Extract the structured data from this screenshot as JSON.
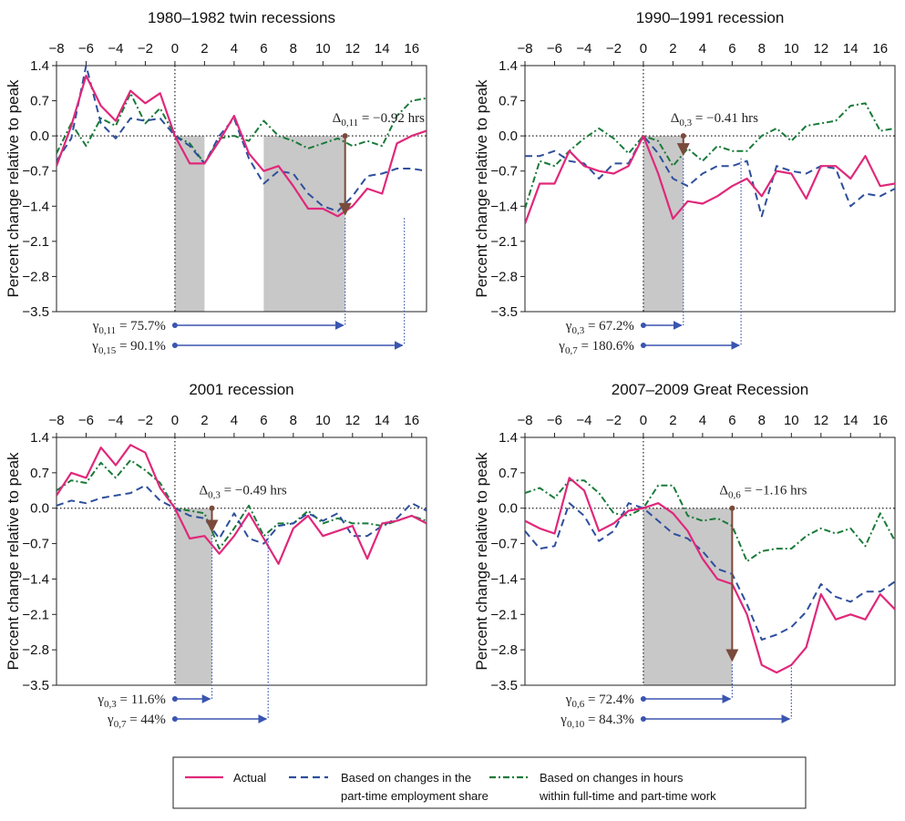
{
  "colors": {
    "actual": "#e0287a",
    "part_time_share": "#2e4f9c",
    "hours_within": "#1a7a3a",
    "shade": "#c8c8c8",
    "brown_marker": "#7a4a3a",
    "gamma_arrow": "#3a55b0"
  },
  "chart_data": [
    {
      "type": "line",
      "title": "1980–1982 twin recessions",
      "ylabel": "Percent change relative to peak",
      "x_ticks": [
        "−8",
        "−6",
        "−4",
        "−2",
        "0",
        "2",
        "4",
        "6",
        "8",
        "10",
        "12",
        "14",
        "16"
      ],
      "y_ticks": [
        "1.4",
        "0.7",
        "0.0",
        "−0.7",
        "−1.4",
        "−2.1",
        "−2.8",
        "−3.5"
      ],
      "xlim": [
        -8,
        17
      ],
      "ylim": [
        -3.5,
        1.4
      ],
      "x": [
        -8,
        -7,
        -6,
        -5,
        -4,
        -3,
        -2,
        -1,
        0,
        1,
        2,
        3,
        4,
        5,
        6,
        7,
        8,
        9,
        10,
        11,
        12,
        13,
        14,
        15,
        16,
        17
      ],
      "series": [
        {
          "key": "actual",
          "values": [
            -0.6,
            0.2,
            1.2,
            0.6,
            0.3,
            0.9,
            0.65,
            0.85,
            0.0,
            -0.55,
            -0.55,
            -0.1,
            0.4,
            -0.35,
            -0.7,
            -0.6,
            -1.0,
            -1.45,
            -1.45,
            -1.6,
            -1.4,
            -1.05,
            -1.15,
            -0.15,
            0.0,
            0.1
          ]
        },
        {
          "key": "part_time_share",
          "values": [
            -0.5,
            -0.05,
            1.4,
            0.25,
            -0.05,
            0.35,
            0.3,
            0.35,
            0.0,
            -0.2,
            -0.55,
            0.0,
            0.35,
            -0.45,
            -0.95,
            -0.7,
            -0.75,
            -1.15,
            -1.4,
            -1.5,
            -1.2,
            -0.8,
            -0.75,
            -0.65,
            -0.65,
            -0.7
          ]
        },
        {
          "key": "hours_within",
          "values": [
            -0.35,
            0.25,
            -0.2,
            0.35,
            0.2,
            0.85,
            0.25,
            0.55,
            0.0,
            -0.15,
            -0.55,
            -0.05,
            0.0,
            -0.1,
            0.3,
            0.0,
            -0.1,
            -0.25,
            -0.15,
            -0.05,
            -0.2,
            -0.1,
            -0.2,
            0.4,
            0.7,
            0.75
          ]
        }
      ],
      "shaded_ranges": [
        [
          0,
          2
        ],
        [
          6,
          11.5
        ]
      ],
      "delta": {
        "label": "Δ",
        "sub": "0,11",
        "text": " = −0.92 hrs",
        "x": 11.5,
        "y": -1.6
      },
      "gammas": [
        {
          "label": "γ",
          "sub": "0,11",
          "text": " = 75.7%",
          "x_end": 11.5
        },
        {
          "label": "γ",
          "sub": "0,15",
          "text": " = 90.1%",
          "x_end": 15.5
        }
      ]
    },
    {
      "type": "line",
      "title": "1990–1991 recession",
      "ylabel": "Percent change relative to peak",
      "x_ticks": [
        "−8",
        "−6",
        "−4",
        "−2",
        "0",
        "2",
        "4",
        "6",
        "8",
        "10",
        "12",
        "14",
        "16"
      ],
      "y_ticks": [
        "1.4",
        "0.7",
        "0.0",
        "−0.7",
        "−1.4",
        "−2.1",
        "−2.8",
        "−3.5"
      ],
      "xlim": [
        -8,
        17
      ],
      "ylim": [
        -3.5,
        1.4
      ],
      "x": [
        -8,
        -7,
        -6,
        -5,
        -4,
        -3,
        -2,
        -1,
        0,
        1,
        2,
        3,
        4,
        5,
        6,
        7,
        8,
        9,
        10,
        11,
        12,
        13,
        14,
        15,
        16,
        17
      ],
      "series": [
        {
          "key": "actual",
          "values": [
            -1.75,
            -0.95,
            -0.95,
            -0.3,
            -0.6,
            -0.7,
            -0.75,
            -0.6,
            0.0,
            -0.75,
            -1.65,
            -1.3,
            -1.35,
            -1.2,
            -1.0,
            -0.85,
            -1.2,
            -0.7,
            -0.75,
            -1.25,
            -0.6,
            -0.6,
            -0.85,
            -0.4,
            -1.0,
            -0.95
          ]
        },
        {
          "key": "part_time_share",
          "values": [
            -0.4,
            -0.4,
            -0.3,
            -0.5,
            -0.55,
            -0.85,
            -0.55,
            -0.55,
            0.0,
            -0.35,
            -0.85,
            -1.0,
            -0.75,
            -0.6,
            -0.6,
            -0.5,
            -1.6,
            -0.6,
            -0.7,
            -0.75,
            -0.6,
            -0.65,
            -1.4,
            -1.15,
            -1.2,
            -1.05
          ]
        },
        {
          "key": "hours_within",
          "values": [
            -1.45,
            -0.5,
            -0.6,
            -0.3,
            -0.05,
            0.15,
            -0.05,
            -0.35,
            0.0,
            -0.1,
            -0.6,
            -0.25,
            -0.5,
            -0.2,
            -0.3,
            -0.3,
            0.0,
            0.15,
            -0.1,
            0.2,
            0.25,
            0.3,
            0.6,
            0.65,
            0.1,
            0.15
          ]
        }
      ],
      "shaded_ranges": [
        [
          0,
          2.7
        ]
      ],
      "delta": {
        "label": "Δ",
        "sub": "0,3",
        "text": " = −0.41 hrs",
        "x": 2.7,
        "y": -0.41
      },
      "gammas": [
        {
          "label": "γ",
          "sub": "0,3",
          "text": " = 67.2%",
          "x_end": 2.7
        },
        {
          "label": "γ",
          "sub": "0,7",
          "text": " = 180.6%",
          "x_end": 6.6
        }
      ]
    },
    {
      "type": "line",
      "title": "2001 recession",
      "ylabel": "Percent change relative to peak",
      "x_ticks": [
        "−8",
        "−6",
        "−4",
        "−2",
        "0",
        "2",
        "4",
        "6",
        "8",
        "10",
        "12",
        "14",
        "16"
      ],
      "y_ticks": [
        "1.4",
        "0.7",
        "0.0",
        "−0.7",
        "−1.4",
        "−2.1",
        "−2.8",
        "−3.5"
      ],
      "xlim": [
        -8,
        17
      ],
      "ylim": [
        -3.5,
        1.4
      ],
      "x": [
        -8,
        -7,
        -6,
        -5,
        -4,
        -3,
        -2,
        -1,
        0,
        1,
        2,
        3,
        4,
        5,
        6,
        7,
        8,
        9,
        10,
        11,
        12,
        13,
        14,
        15,
        16,
        17
      ],
      "series": [
        {
          "key": "actual",
          "values": [
            0.25,
            0.7,
            0.6,
            1.2,
            0.85,
            1.25,
            1.1,
            0.4,
            0.0,
            -0.6,
            -0.55,
            -0.9,
            -0.55,
            -0.1,
            -0.6,
            -1.1,
            -0.4,
            -0.15,
            -0.55,
            -0.45,
            -0.35,
            -1.0,
            -0.3,
            -0.25,
            -0.15,
            -0.3
          ]
        },
        {
          "key": "part_time_share",
          "values": [
            0.05,
            0.15,
            0.1,
            0.2,
            0.25,
            0.3,
            0.45,
            0.15,
            0.0,
            -0.15,
            -0.2,
            -0.6,
            -0.1,
            -0.6,
            -0.7,
            -0.35,
            -0.3,
            -0.1,
            -0.25,
            -0.1,
            -0.55,
            -0.55,
            -0.35,
            -0.2,
            0.1,
            -0.05
          ]
        },
        {
          "key": "hours_within",
          "values": [
            0.35,
            0.55,
            0.5,
            0.9,
            0.6,
            0.95,
            0.75,
            0.5,
            0.0,
            -0.05,
            -0.1,
            -0.8,
            -0.4,
            0.05,
            -0.55,
            -0.3,
            -0.3,
            -0.05,
            -0.3,
            -0.2,
            -0.3,
            -0.3,
            -0.35,
            -0.25,
            -0.15,
            -0.25
          ]
        }
      ],
      "shaded_ranges": [
        [
          0,
          2.5
        ]
      ],
      "delta": {
        "label": "Δ",
        "sub": "0,3",
        "text": " = −0.49 hrs",
        "x": 2.5,
        "y": -0.49
      },
      "gammas": [
        {
          "label": "γ",
          "sub": "0,3",
          "text": " = 11.6%",
          "x_end": 2.5
        },
        {
          "label": "γ",
          "sub": "0,7",
          "text": " = 44%",
          "x_end": 6.3
        }
      ]
    },
    {
      "type": "line",
      "title": "2007–2009 Great Recession",
      "ylabel": "Percent change relative to peak",
      "x_ticks": [
        "−8",
        "−6",
        "−4",
        "−2",
        "0",
        "2",
        "4",
        "6",
        "8",
        "10",
        "12",
        "14",
        "16"
      ],
      "y_ticks": [
        "1.4",
        "0.7",
        "0.0",
        "−0.7",
        "−1.4",
        "−2.1",
        "−2.8",
        "−3.5"
      ],
      "xlim": [
        -8,
        17
      ],
      "ylim": [
        -3.5,
        1.4
      ],
      "x": [
        -8,
        -7,
        -6,
        -5,
        -4,
        -3,
        -2,
        -1,
        0,
        1,
        2,
        3,
        4,
        5,
        6,
        7,
        8,
        9,
        10,
        11,
        12,
        13,
        14,
        15,
        16,
        17
      ],
      "series": [
        {
          "key": "actual",
          "values": [
            -0.25,
            -0.4,
            -0.5,
            0.6,
            0.35,
            -0.45,
            -0.3,
            -0.05,
            0.0,
            0.1,
            -0.1,
            -0.45,
            -1.0,
            -1.4,
            -1.5,
            -2.1,
            -3.1,
            -3.25,
            -3.1,
            -2.75,
            -1.7,
            -2.2,
            -2.1,
            -2.2,
            -1.7,
            -2.0
          ]
        },
        {
          "key": "part_time_share",
          "values": [
            -0.45,
            -0.8,
            -0.75,
            0.1,
            -0.15,
            -0.65,
            -0.45,
            0.1,
            0.0,
            -0.25,
            -0.5,
            -0.6,
            -0.85,
            -1.2,
            -1.3,
            -1.9,
            -2.6,
            -2.5,
            -2.35,
            -2.05,
            -1.5,
            -1.75,
            -1.85,
            -1.65,
            -1.65,
            -1.45
          ]
        },
        {
          "key": "hours_within",
          "values": [
            0.3,
            0.4,
            0.2,
            0.55,
            0.55,
            0.3,
            -0.1,
            -0.15,
            0.0,
            0.45,
            0.45,
            -0.15,
            -0.25,
            -0.2,
            -0.35,
            -1.05,
            -0.85,
            -0.8,
            -0.8,
            -0.55,
            -0.4,
            -0.5,
            -0.4,
            -0.75,
            -0.1,
            -0.65
          ]
        }
      ],
      "shaded_ranges": [
        [
          0,
          6
        ]
      ],
      "delta": {
        "label": "Δ",
        "sub": "0,6",
        "text": " = −1.16 hrs",
        "x": 6,
        "y": -3.05
      },
      "gammas": [
        {
          "label": "γ",
          "sub": "0,6",
          "text": " = 72.4%",
          "x_end": 6
        },
        {
          "label": "γ",
          "sub": "0,10",
          "text": " = 84.3%",
          "x_end": 10
        }
      ]
    }
  ],
  "legend": {
    "items": [
      {
        "key": "actual",
        "lines": [
          "Actual"
        ]
      },
      {
        "key": "part_time_share",
        "lines": [
          "Based on changes in the",
          "part-time employment share"
        ]
      },
      {
        "key": "hours_within",
        "lines": [
          "Based on changes in hours",
          "within full-time and part-time work"
        ]
      }
    ]
  }
}
